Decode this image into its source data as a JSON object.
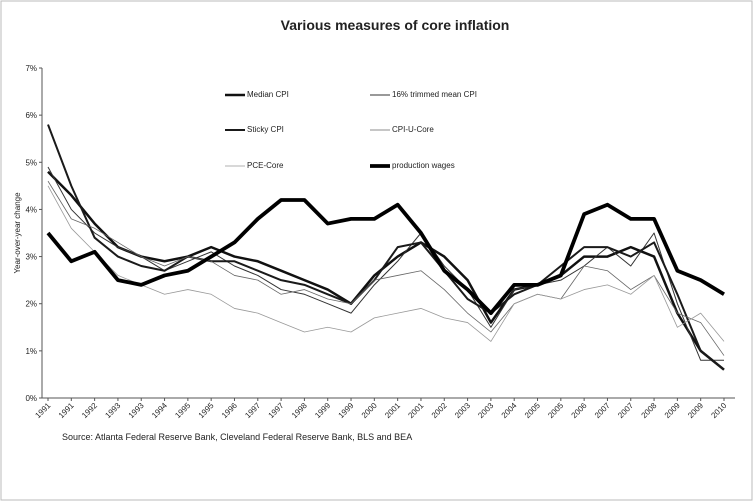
{
  "chart_data": {
    "type": "line",
    "title": "Various measures of core inflation",
    "y_label": "Year-over-year change",
    "source": "Source: Atlanta Federal Reserve Bank, Cleveland Federal Reserve Bank, BLS and BEA",
    "categories": [
      "1991",
      "1991",
      "1992",
      "1993",
      "1993",
      "1994",
      "1995",
      "1995",
      "1996",
      "1997",
      "1997",
      "1998",
      "1999",
      "1999",
      "2000",
      "2001",
      "2001",
      "2002",
      "2003",
      "2003",
      "2004",
      "2005",
      "2005",
      "2006",
      "2007",
      "2007",
      "2008",
      "2009",
      "2009",
      "2010"
    ],
    "ylim": [
      0,
      7
    ],
    "yticks": [
      {
        "value": 0,
        "label": "0%"
      },
      {
        "value": 1,
        "label": "1%"
      },
      {
        "value": 2,
        "label": "2%"
      },
      {
        "value": 3,
        "label": "3%"
      },
      {
        "value": 4,
        "label": "4%"
      },
      {
        "value": 5,
        "label": "5%"
      },
      {
        "value": 6,
        "label": "6%"
      },
      {
        "value": 7,
        "label": "7%"
      }
    ],
    "series": [
      {
        "name": "Median CPI",
        "color": "#111111",
        "values": [
          4.8,
          4.3,
          3.7,
          3.2,
          3.0,
          2.9,
          3.0,
          3.2,
          3.0,
          2.9,
          2.7,
          2.5,
          2.3,
          2.0,
          2.6,
          3.0,
          3.3,
          3.0,
          2.5,
          1.6,
          2.3,
          2.4,
          2.6,
          3.0,
          3.0,
          3.2,
          3.0,
          1.8,
          1.0,
          0.6
        ]
      },
      {
        "name": "16% trimmed mean CPI",
        "color": "#333333",
        "values": [
          4.9,
          4.0,
          3.5,
          3.2,
          3.0,
          2.7,
          2.9,
          3.1,
          2.8,
          2.6,
          2.3,
          2.2,
          2.0,
          1.8,
          2.4,
          2.9,
          3.5,
          2.8,
          2.3,
          1.5,
          2.3,
          2.4,
          2.5,
          2.8,
          3.2,
          2.8,
          3.5,
          2.0,
          0.8,
          0.8
        ]
      },
      {
        "name": "Sticky CPI",
        "color": "#1a1a1a",
        "values": [
          5.8,
          4.5,
          3.4,
          3.0,
          2.8,
          2.7,
          3.0,
          2.9,
          2.9,
          2.7,
          2.5,
          2.4,
          2.2,
          2.0,
          2.5,
          3.2,
          3.3,
          2.7,
          2.1,
          1.8,
          2.2,
          2.4,
          2.8,
          3.2,
          3.2,
          3.0,
          3.3,
          2.2,
          1.0,
          0.6
        ]
      },
      {
        "name": "CPI-U-Core",
        "color": "#666666",
        "values": [
          4.6,
          3.8,
          3.6,
          3.3,
          3.0,
          2.8,
          3.0,
          2.9,
          2.6,
          2.5,
          2.2,
          2.3,
          2.1,
          2.0,
          2.5,
          2.6,
          2.7,
          2.3,
          1.8,
          1.4,
          2.0,
          2.2,
          2.1,
          2.8,
          2.7,
          2.3,
          2.6,
          1.8,
          1.6,
          0.9
        ]
      },
      {
        "name": "PCE-Core",
        "color": "#999999",
        "values": [
          4.5,
          3.6,
          3.1,
          2.6,
          2.4,
          2.2,
          2.3,
          2.2,
          1.9,
          1.8,
          1.6,
          1.4,
          1.5,
          1.4,
          1.7,
          1.8,
          1.9,
          1.7,
          1.6,
          1.2,
          2.0,
          2.2,
          2.1,
          2.3,
          2.4,
          2.2,
          2.6,
          1.5,
          1.8,
          1.2
        ]
      },
      {
        "name": "production wages",
        "color": "#000000",
        "values": [
          3.5,
          2.9,
          3.1,
          2.5,
          2.4,
          2.6,
          2.7,
          3.0,
          3.3,
          3.8,
          4.2,
          4.2,
          3.7,
          3.8,
          3.8,
          4.1,
          3.5,
          2.7,
          2.3,
          1.8,
          2.4,
          2.4,
          2.6,
          3.9,
          4.1,
          3.8,
          3.8,
          2.7,
          2.5,
          2.2
        ]
      }
    ]
  }
}
